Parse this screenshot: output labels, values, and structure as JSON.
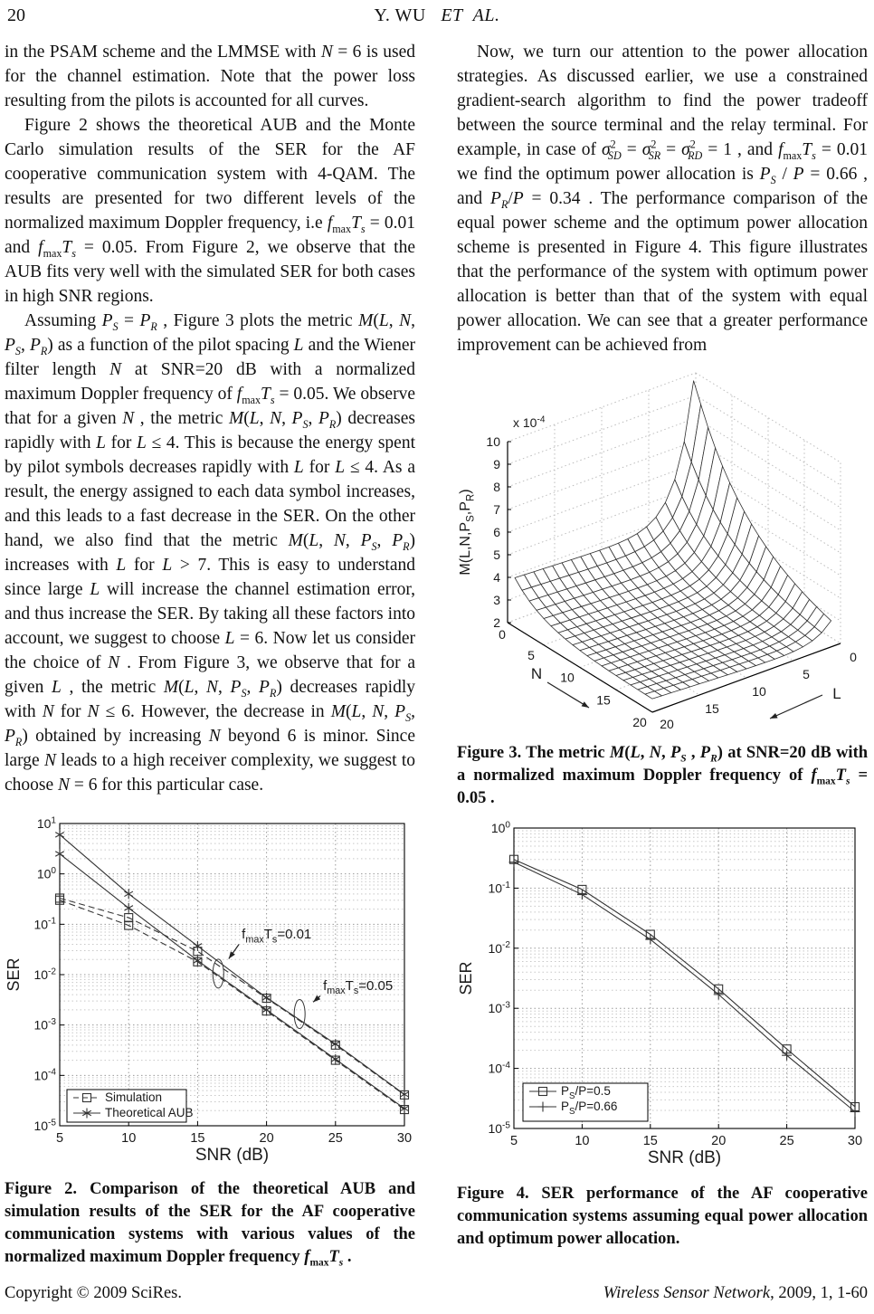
{
  "page": {
    "number": "20",
    "running_head_html": "Y. WU&nbsp;&nbsp;&nbsp;<i>ET&nbsp;&nbsp;AL.</i>"
  },
  "columns": {
    "left_paragraphs": [
      "in the PSAM scheme and the LMMSE with <i>N</i> = 6 is used for the channel estimation. Note that the power loss resulting from the pilots is accounted for all curves.",
      "Figure 2 shows the theoretical AUB and the Monte Carlo simulation results of the SER for the AF cooperative communication system with 4-QAM. The results are presented for two different levels of the normalized maximum Doppler frequency, i.e <i>f</i><sub>max</sub><i>T</i><sub><i>s</i></sub> = 0.01 and <i>f</i><sub>max</sub><i>T</i><sub><i>s</i></sub> = 0.05. From Figure 2, we observe that the AUB fits very well with the simulated SER for both cases in high SNR regions.",
      "Assuming <i>P</i><sub><i>S</i></sub> = <i>P</i><sub><i>R</i></sub> , Figure 3 plots the metric <i>M</i>(<i>L</i>, <i>N</i>, <i>P</i><sub><i>S</i></sub>, <i>P</i><sub><i>R</i></sub>) as a function of the pilot spacing <i>L</i> and the Wiener filter length <i>N</i> at SNR=20 dB with a normalized maximum Doppler frequency of <i>f</i><sub>max</sub><i>T</i><sub><i>s</i></sub> = 0.05. We observe that for a given <i>N</i> , the metric <i>M</i>(<i>L</i>, <i>N</i>, <i>P</i><sub><i>S</i></sub>, <i>P</i><sub><i>R</i></sub>) decreases rapidly with <i>L</i> for <i>L</i> ≤ 4. This is because the energy spent by pilot symbols decreases rapidly with <i>L</i> for <i>L</i> ≤ 4. As a result, the energy assigned to each data symbol increases, and this leads to a fast decrease in the SER. On the other hand, we also find that the metric <i>M</i>(<i>L</i>, <i>N</i>, <i>P</i><sub><i>S</i></sub>, <i>P</i><sub><i>R</i></sub>) increases with <i>L</i> for <i>L</i> > 7. This is easy to understand since large <i>L</i> will increase the channel estimation error, and thus increase the SER. By taking all these factors into account, we suggest to choose <i>L</i> = 6. Now let us consider the choice of <i>N</i> . From Figure 3, we observe that for a given <i>L</i> , the metric <i>M</i>(<i>L</i>, <i>N</i>, <i>P</i><sub><i>S</i></sub>, <i>P</i><sub><i>R</i></sub>) decreases rapidly with <i>N</i> for <i>N</i> ≤ 6. However, the decrease in <i>M</i>(<i>L</i>, <i>N</i>, <i>P</i><sub><i>S</i></sub>, <i>P</i><sub><i>R</i></sub>) obtained by increasing <i>N</i> beyond 6 is minor. Since large <i>N</i> leads to a high receiver complexity, we suggest to choose <i>N</i> = 6 for this particular case."
    ],
    "right_paragraphs": [
      "Now, we turn our attention to the power allocation strategies. As discussed earlier, we use a constrained gradient-search algorithm to find the power tradeoff between the source terminal and the relay terminal. For example, in case of <i>σ</i><sup>2</sup><sub><i>SD</i></sub> = <i>σ</i><sup>2</sup><sub><i>SR</i></sub> = <i>σ</i><sup>2</sup><sub><i>RD</i></sub> = 1 , and <i>f</i><sub>max</sub><i>T</i><sub><i>s</i></sub> = 0.01 we find the optimum power allocation is <i>P</i><sub><i>S</i></sub> / <i>P</i> = 0.66 , and <i>P</i><sub><i>R</i></sub>/<i>P</i> = 0.34 . The performance comparison of the equal power scheme and the optimum power allocation scheme is presented in Figure 4. This figure illustrates that the performance of the system with optimum power allocation is better than that of the system with equal power allocation. We can see that a greater performance improvement can be achieved from"
    ]
  },
  "captions": {
    "figure2_html": "Figure 2. Comparison of the theoretical AUB and simulation results of the SER for the AF cooperative communication systems with various values of the normalized maximum Doppler frequency <i>f</i><sub>max</sub><i>T</i><sub><i>s</i></sub> .",
    "figure3_html": "Figure 3. The metric <i>M</i>(<i>L</i>, <i>N</i>, <i>P</i><sub><i>S</i></sub> , <i>P</i><sub><i>R</i></sub>) at SNR=20 dB with a normalized maximum Doppler frequency of <i>f</i><sub>max</sub><i>T</i><sub><i>s</i></sub> = 0.05 .",
    "figure4_html": "Figure 4. SER performance of the AF cooperative communication systems assuming equal power allocation and optimum power allocation."
  },
  "footer": {
    "left": "Copyright © 2009 SciRes.",
    "right_html": "<i>Wireless Sensor Network</i>, 2009, 1, 1-60"
  },
  "chart_data": [
    {
      "id": "figure2",
      "type": "line",
      "log_y": true,
      "xlabel": "SNR (dB)",
      "ylabel": "SER",
      "xlim": [
        5,
        30
      ],
      "xticks": [
        5,
        10,
        15,
        20,
        25,
        30
      ],
      "ylim_exp": [
        -5,
        1
      ],
      "x": [
        5,
        10,
        15,
        20,
        25,
        30
      ],
      "series": [
        {
          "name": "Theoretical AUB, fmaxTs=0.05",
          "marker": "asterisk",
          "line": "solid",
          "values": [
            6.0,
            0.4,
            0.037,
            0.0035,
            0.00042,
            4.2e-05
          ]
        },
        {
          "name": "Theoretical AUB, fmaxTs=0.01",
          "marker": "asterisk",
          "line": "solid",
          "values": [
            2.5,
            0.21,
            0.019,
            0.002,
            0.00021,
            2.2e-05
          ]
        },
        {
          "name": "Simulation, fmaxTs=0.05",
          "marker": "square",
          "line": "dashed",
          "values": [
            0.33,
            0.135,
            0.029,
            0.0034,
            0.0004,
            4.1e-05
          ]
        },
        {
          "name": "Simulation, fmaxTs=0.01",
          "marker": "square",
          "line": "dashed",
          "values": [
            0.3,
            0.095,
            0.018,
            0.0019,
            0.0002,
            2.1e-05
          ]
        }
      ],
      "legend": [
        {
          "label_html": "Simulation",
          "marker": "square",
          "line": "dashed"
        },
        {
          "label_html": "Theoretical AUB",
          "marker": "asterisk",
          "line": "solid"
        }
      ],
      "annotations": [
        {
          "text_html": "f<sub>max</sub>T<sub>s</sub>=0.01",
          "x": 18.2,
          "y": 0.052,
          "arrow_from": {
            "x": 18.0,
            "y": 0.04
          },
          "ellipse": {
            "x": 16.5,
            "y": 0.0105
          }
        },
        {
          "text_html": "f<sub>max</sub>T<sub>s</sub>=0.05",
          "x": 24.1,
          "y": 0.005,
          "arrow_from": {
            "x": 23.9,
            "y": 0.0038
          },
          "ellipse": {
            "x": 22.4,
            "y": 0.00165
          }
        }
      ]
    },
    {
      "id": "figure3",
      "type": "surface",
      "xlabel": "N",
      "ylabel": "L",
      "zlabel_html": "M(L,N,P<sub>S</sub>,P<sub>R</sub>)",
      "z_scale_html": "x 10<sup>-4</sup>",
      "n_range": [
        0,
        20
      ],
      "l_range": [
        0,
        20
      ],
      "n_ticks": [
        0,
        5,
        10,
        15,
        20
      ],
      "l_ticks": [
        0,
        5,
        10,
        15,
        20
      ],
      "z_ticks": [
        2,
        3,
        4,
        5,
        6,
        7,
        8,
        9,
        10
      ],
      "z_units": "1e-4",
      "zlim_e4": [
        2,
        10
      ],
      "peak": {
        "L": 1,
        "N": 1,
        "z_e4": 10
      },
      "basin_z_e4": 2.4,
      "grid": {
        "L_from": 1,
        "L_to": 20,
        "N_from": 1,
        "N_to": 20,
        "step": 1
      },
      "model": {
        "base": 2.0,
        "a0": 6.3,
        "a_decay": 0.1,
        "l_decay": 0.55,
        "b0": 1.6,
        "b_decay": 0.25,
        "b_off": 0.2,
        "c": 0.02,
        "z_max": 10
      }
    },
    {
      "id": "figure4",
      "type": "line",
      "log_y": true,
      "xlabel": "SNR (dB)",
      "ylabel": "SER",
      "xlim": [
        5,
        30
      ],
      "xticks": [
        5,
        10,
        15,
        20,
        25,
        30
      ],
      "ylim_exp": [
        -5,
        0
      ],
      "x": [
        5,
        10,
        15,
        20,
        25,
        30
      ],
      "series": [
        {
          "name": "PS/P=0.5",
          "marker": "square",
          "line": "solid",
          "values": [
            0.3,
            0.095,
            0.017,
            0.0021,
            0.00021,
            2.3e-05
          ]
        },
        {
          "name": "PS/P=0.66",
          "marker": "plus",
          "line": "solid",
          "values": [
            0.27,
            0.078,
            0.014,
            0.0017,
            0.000165,
            1.9e-05
          ]
        }
      ],
      "legend": [
        {
          "label_html": "P<sub>S</sub>/P=0.5",
          "marker": "square",
          "line": "solid"
        },
        {
          "label_html": "P<sub>S</sub>/P=0.66",
          "marker": "plus",
          "line": "solid"
        }
      ]
    }
  ]
}
